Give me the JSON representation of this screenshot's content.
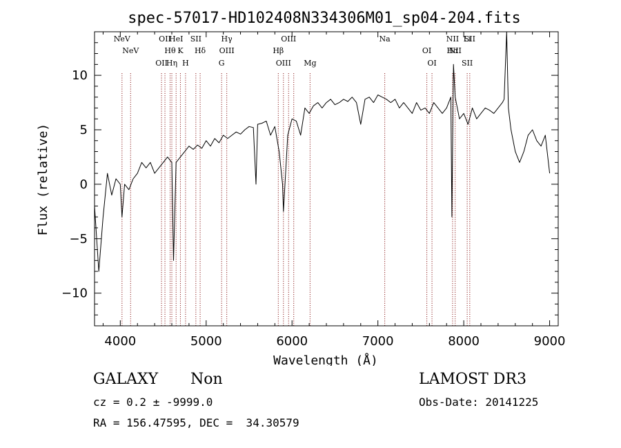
{
  "chart_data": {
    "type": "line",
    "title": "spec-57017-HD102408N334306M01_sp04-204.fits",
    "xlabel": "Wavelength (Å)",
    "ylabel": "Flux (relative)",
    "xlim": [
      3700,
      9100
    ],
    "ylim": [
      -13,
      14
    ],
    "xticks": [
      4000,
      5000,
      6000,
      7000,
      8000,
      9000
    ],
    "yticks": [
      -10,
      -5,
      0,
      5,
      10
    ],
    "grid": false,
    "line_color": "#000000",
    "marker_color": "#8b1a1a",
    "series": [
      {
        "name": "flux",
        "x": [
          3700,
          3750,
          3800,
          3850,
          3900,
          3950,
          4000,
          4020,
          4050,
          4100,
          4150,
          4200,
          4250,
          4300,
          4350,
          4400,
          4450,
          4500,
          4550,
          4600,
          4620,
          4650,
          4700,
          4750,
          4800,
          4850,
          4900,
          4950,
          5000,
          5050,
          5100,
          5150,
          5200,
          5250,
          5300,
          5350,
          5400,
          5450,
          5500,
          5550,
          5580,
          5600,
          5650,
          5700,
          5750,
          5800,
          5850,
          5890,
          5900,
          5950,
          6000,
          6050,
          6100,
          6150,
          6200,
          6250,
          6300,
          6350,
          6400,
          6450,
          6500,
          6550,
          6600,
          6650,
          6700,
          6750,
          6800,
          6850,
          6900,
          6950,
          7000,
          7050,
          7100,
          7150,
          7200,
          7250,
          7300,
          7350,
          7400,
          7450,
          7500,
          7550,
          7600,
          7650,
          7700,
          7750,
          7800,
          7850,
          7862,
          7880,
          7900,
          7950,
          8000,
          8050,
          8100,
          8150,
          8200,
          8250,
          8300,
          8350,
          8400,
          8450,
          8470,
          8500,
          8520,
          8550,
          8600,
          8650,
          8700,
          8750,
          8800,
          8850,
          8900,
          8950,
          9000
        ],
        "y": [
          -2,
          -8,
          -3,
          1,
          -1,
          0.5,
          0,
          -3,
          0,
          -0.5,
          0.5,
          1,
          2,
          1.5,
          2,
          1,
          1.5,
          2,
          2.5,
          2,
          -7,
          2,
          2.5,
          3,
          3.5,
          3.2,
          3.6,
          3.3,
          4,
          3.5,
          4.2,
          3.8,
          4.5,
          4.2,
          4.5,
          4.8,
          4.6,
          5,
          5.3,
          5.2,
          0,
          5.5,
          5.6,
          5.8,
          4.5,
          5.3,
          3,
          0,
          -2.5,
          4.5,
          6,
          5.8,
          4.5,
          7,
          6.5,
          7.2,
          7.5,
          7,
          7.5,
          7.8,
          7.3,
          7.5,
          7.8,
          7.6,
          8,
          7.5,
          5.5,
          7.8,
          8,
          7.5,
          8.2,
          8,
          7.8,
          7.5,
          7.8,
          7,
          7.5,
          7,
          6.5,
          7.5,
          6.8,
          7,
          6.5,
          7.5,
          7,
          6.5,
          7,
          8,
          -3,
          11,
          8,
          6,
          6.5,
          5.5,
          7,
          6,
          6.5,
          7,
          6.8,
          6.5,
          7,
          7.5,
          7.8,
          14,
          7,
          5,
          3,
          2,
          3,
          4.5,
          5,
          4,
          3.5,
          4.5,
          1
        ]
      }
    ],
    "lines": [
      {
        "x": 4020,
        "labels": [
          "NeV"
        ]
      },
      {
        "x": 4120,
        "labels": [
          "NeV"
        ]
      },
      {
        "x": 4480,
        "labels": [
          "OII"
        ]
      },
      {
        "x": 4520,
        "labels": [
          "OII"
        ]
      },
      {
        "x": 4580,
        "labels": [
          "Hθ"
        ]
      },
      {
        "x": 4600,
        "labels": [
          "Hη"
        ]
      },
      {
        "x": 4650,
        "labels": [
          "HeI"
        ]
      },
      {
        "x": 4700,
        "labels": [
          "K"
        ]
      },
      {
        "x": 4760,
        "labels": [
          "H"
        ]
      },
      {
        "x": 4880,
        "labels": [
          "SII"
        ]
      },
      {
        "x": 4930,
        "labels": [
          "Hδ"
        ]
      },
      {
        "x": 5180,
        "labels": [
          "G"
        ]
      },
      {
        "x": 5240,
        "labels": [
          "Hγ",
          "OIII"
        ]
      },
      {
        "x": 5840,
        "labels": [
          "Hβ"
        ]
      },
      {
        "x": 5900,
        "labels": [
          "OIII"
        ]
      },
      {
        "x": 5960,
        "labels": [
          "OIII"
        ]
      },
      {
        "x": 6020,
        "labels": []
      },
      {
        "x": 6210,
        "labels": [
          "Mg"
        ]
      },
      {
        "x": 7080,
        "labels": [
          "Na"
        ]
      },
      {
        "x": 7570,
        "labels": [
          "OI"
        ]
      },
      {
        "x": 7630,
        "labels": [
          "OI"
        ]
      },
      {
        "x": 7870,
        "labels": [
          "NII",
          "Hα"
        ]
      },
      {
        "x": 7900,
        "labels": [
          "NII"
        ]
      },
      {
        "x": 8040,
        "labels": [
          "SII",
          "Li"
        ]
      },
      {
        "x": 8070,
        "labels": [
          "SII"
        ]
      }
    ]
  },
  "info": {
    "object_class": "GALAXY",
    "object_subclass": "Non",
    "survey": "LAMOST DR3",
    "redshift": "cz = 0.2 ± -9999.0",
    "obs_date": "Obs-Date: 20141225",
    "coords": "RA = 156.47595, DEC =  34.30579"
  }
}
